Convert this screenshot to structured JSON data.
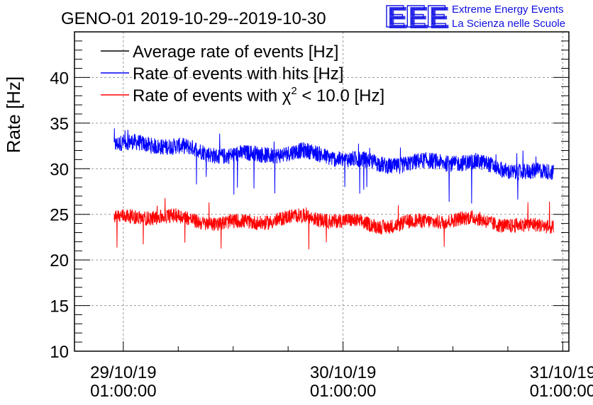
{
  "logo": {
    "mark": "EEE",
    "line1": "Extreme Energy Events",
    "line2": "La Scienza nelle Scuole",
    "color": "#1414e6"
  },
  "chart_data": {
    "type": "line",
    "title": "GENO-01 2019-10-29--2019-10-30",
    "xlabel": "",
    "ylabel": "Rate [Hz]",
    "ylim": [
      10,
      45
    ],
    "yticks": [
      10,
      15,
      20,
      25,
      30,
      35,
      40
    ],
    "xlim": [
      "2019-10-28 19:40",
      "2019-10-31 01:40"
    ],
    "xticks": [
      {
        "x": "2019-10-29 01:00",
        "date": "29/10/19",
        "time": "01:00:00"
      },
      {
        "x": "2019-10-30 01:00",
        "date": "30/10/19",
        "time": "01:00:00"
      },
      {
        "x": "2019-10-31 01:00",
        "date": "31/10/19",
        "time": "01:00:00"
      }
    ],
    "grid": true,
    "legend_position": "top-left",
    "legend": [
      {
        "label": "Average rate of events [Hz]",
        "color": "#000000"
      },
      {
        "label": "Rate of events with hits [Hz]",
        "color": "#0000ff"
      },
      {
        "label_prefix": "Rate of events with ",
        "label_symbol": "χ",
        "label_sup": "2",
        "label_suffix": " < 10.0 [Hz]",
        "color": "#ff0000"
      }
    ],
    "series": [
      {
        "name": "Rate of events with hits [Hz]",
        "color": "#0000ff",
        "x_start": "2019-10-29 00:00",
        "x_end": "2019-10-30 23:59",
        "mean_start": 32.6,
        "mean_end": 29.8,
        "noise": 0.9,
        "spike_max": 34.7,
        "spike_min": 27.8
      },
      {
        "name": "Rate of events with χ2 < 10.0 [Hz]",
        "color": "#ff0000",
        "x_start": "2019-10-29 00:00",
        "x_end": "2019-10-30 23:59",
        "mean_start": 24.5,
        "mean_end": 24.0,
        "noise": 0.8,
        "spike_max": 26.9,
        "spike_min": 21.3
      }
    ]
  }
}
